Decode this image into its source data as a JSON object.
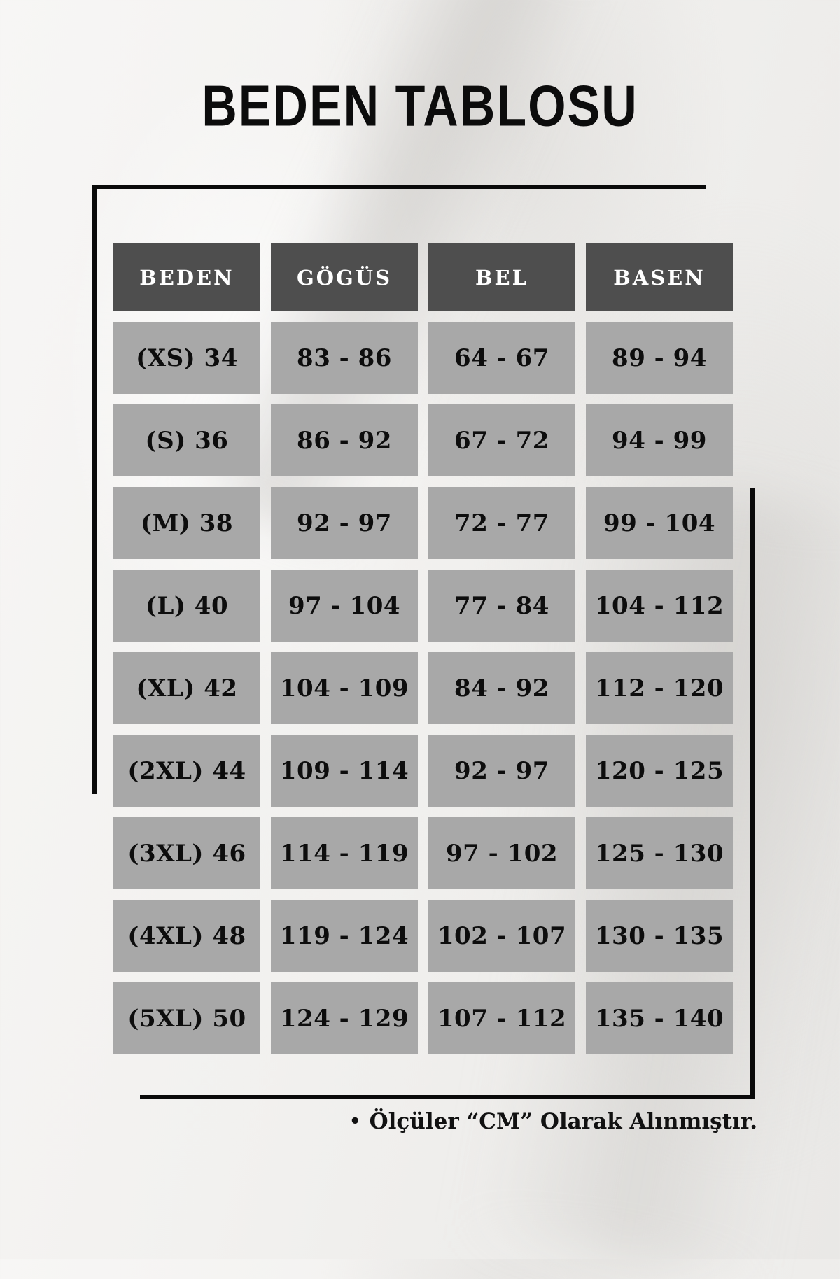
{
  "title": "BEDEN TABLOSU",
  "table": {
    "headers": [
      "BEDEN",
      "GÖGÜS",
      "BEL",
      "BASEN"
    ],
    "rows": [
      [
        "(XS) 34",
        "83 - 86",
        "64 - 67",
        "89 - 94"
      ],
      [
        "(S) 36",
        "86 - 92",
        "67 - 72",
        "94 - 99"
      ],
      [
        "(M) 38",
        "92 - 97",
        "72 - 77",
        "99 - 104"
      ],
      [
        "(L) 40",
        "97 - 104",
        "77 - 84",
        "104 - 112"
      ],
      [
        "(XL) 42",
        "104 - 109",
        "84 - 92",
        "112 - 120"
      ],
      [
        "(2XL) 44",
        "109 - 114",
        "92 - 97",
        "120 - 125"
      ],
      [
        "(3XL) 46",
        "114 - 119",
        "97 - 102",
        "125 - 130"
      ],
      [
        "(4XL) 48",
        "119 - 124",
        "102 - 107",
        "130 - 135"
      ],
      [
        "(5XL) 50",
        "124 - 129",
        "107 - 112",
        "135 - 140"
      ]
    ]
  },
  "footnote": {
    "bullet": "•",
    "text": "Ölçüler “CM” Olarak Alınmıştır."
  },
  "colors": {
    "header_bg": "#4e4e4e",
    "header_text": "#ffffff",
    "cell_bg": "#a8a8a8",
    "cell_text": "#0d0d0d",
    "line": "#0a0a0a",
    "title_text": "#0c0c0c"
  }
}
